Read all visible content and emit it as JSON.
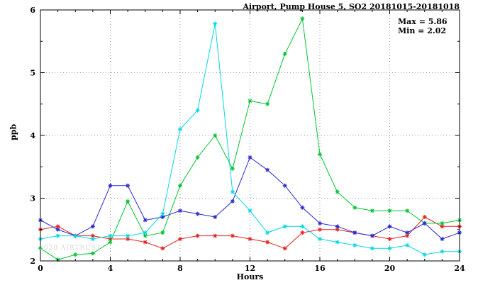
{
  "annotations": {
    "max": "Max = 5.86",
    "min": "Min = 2.02"
  },
  "watermark": "2020 AIRTRUST",
  "chart_data": {
    "type": "line",
    "title": "Airport, Pump House 5, SO2 20181015-20181018",
    "xlabel": "Hours",
    "ylabel": "ppb",
    "xlim": [
      0,
      24
    ],
    "ylim": [
      2,
      6
    ],
    "xticks": [
      0,
      4,
      8,
      12,
      16,
      20,
      24
    ],
    "yticks": [
      2,
      3,
      4,
      5,
      6
    ],
    "grid": true,
    "legend": "none",
    "marker": "asterisk",
    "x": [
      0,
      1,
      2,
      3,
      4,
      5,
      6,
      7,
      8,
      9,
      10,
      11,
      12,
      13,
      14,
      15,
      16,
      17,
      18,
      19,
      20,
      21,
      22,
      23,
      24
    ],
    "series": [
      {
        "name": "red",
        "color": "#e62020",
        "values": [
          2.5,
          2.55,
          2.4,
          2.4,
          2.35,
          2.35,
          2.3,
          2.2,
          2.35,
          2.4,
          2.4,
          2.4,
          2.35,
          2.3,
          2.2,
          2.45,
          2.5,
          2.5,
          2.45,
          2.4,
          2.35,
          2.4,
          2.7,
          2.55,
          2.55
        ]
      },
      {
        "name": "green",
        "color": "#00c432",
        "values": [
          2.2,
          2.02,
          2.1,
          2.12,
          2.3,
          2.95,
          2.4,
          2.45,
          3.2,
          3.65,
          4.0,
          3.47,
          4.55,
          4.5,
          5.3,
          5.86,
          3.7,
          3.1,
          2.85,
          2.8,
          2.8,
          2.8,
          2.6,
          2.6,
          2.65
        ]
      },
      {
        "name": "blue",
        "color": "#2828d2",
        "values": [
          2.65,
          2.5,
          2.4,
          2.55,
          3.2,
          3.2,
          2.65,
          2.7,
          2.8,
          2.75,
          2.7,
          2.95,
          3.65,
          3.45,
          3.2,
          2.85,
          2.6,
          2.55,
          2.45,
          2.4,
          2.55,
          2.45,
          2.6,
          2.35,
          2.45
        ]
      },
      {
        "name": "cyan",
        "color": "#00d8e2",
        "values": [
          2.35,
          2.4,
          2.4,
          2.35,
          2.4,
          2.4,
          2.45,
          2.75,
          4.1,
          4.4,
          5.78,
          3.1,
          2.8,
          2.45,
          2.55,
          2.55,
          2.35,
          2.3,
          2.25,
          2.2,
          2.2,
          2.25,
          2.1,
          2.15,
          2.15
        ]
      }
    ]
  }
}
